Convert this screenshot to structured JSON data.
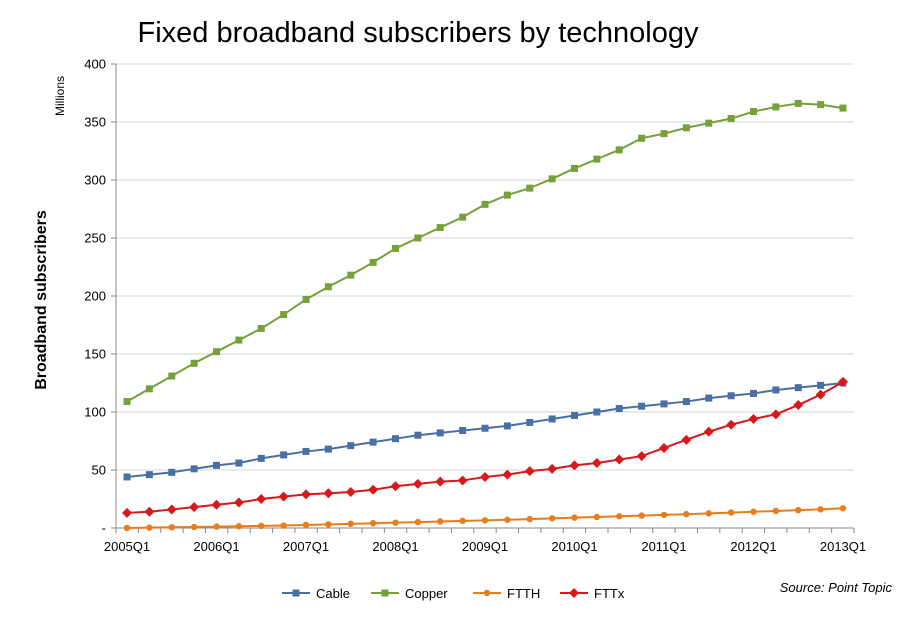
{
  "chart_data": {
    "type": "line",
    "title": "Fixed broadband subscribers by technology",
    "ylabel": "Broadband subscribers",
    "units": "Millions",
    "ylim": [
      0,
      400
    ],
    "yticks": [
      0,
      50,
      100,
      150,
      200,
      250,
      300,
      350,
      400
    ],
    "ytick_labels": [
      "-",
      "50",
      "100",
      "150",
      "200",
      "250",
      "300",
      "350",
      "400"
    ],
    "xtick_labels": [
      "2005Q1",
      "2006Q1",
      "2007Q1",
      "2008Q1",
      "2009Q1",
      "2010Q1",
      "2011Q1",
      "2012Q1",
      "2013Q1"
    ],
    "xtick_positions": [
      0,
      4,
      8,
      12,
      16,
      20,
      24,
      28,
      32
    ],
    "x_count": 33,
    "grid": true,
    "legend_position": "bottom",
    "source": "Source: Point Topic",
    "series": [
      {
        "name": "Cable",
        "color": "#4A6FA5",
        "marker": "square",
        "values": [
          44,
          46,
          48,
          51,
          54,
          56,
          60,
          63,
          66,
          68,
          71,
          74,
          77,
          80,
          82,
          84,
          86,
          88,
          91,
          94,
          97,
          100,
          103,
          105,
          107,
          109,
          112,
          114,
          116,
          119,
          121,
          123,
          125
        ]
      },
      {
        "name": "Copper",
        "color": "#77A03A",
        "marker": "square",
        "values": [
          109,
          120,
          131,
          142,
          152,
          162,
          172,
          184,
          197,
          208,
          218,
          229,
          241,
          250,
          259,
          268,
          279,
          287,
          293,
          301,
          310,
          318,
          326,
          336,
          340,
          345,
          349,
          353,
          359,
          363,
          366,
          365,
          362
        ]
      },
      {
        "name": "FTTH",
        "color": "#E87D1E",
        "marker": "circle",
        "values": [
          0,
          0.3,
          0.6,
          0.9,
          1.2,
          1.5,
          1.8,
          2.1,
          2.6,
          3.1,
          3.6,
          4.1,
          4.6,
          5.1,
          5.6,
          6.1,
          6.6,
          7.1,
          7.7,
          8.3,
          8.9,
          9.5,
          10.1,
          10.7,
          11.3,
          11.9,
          12.6,
          13.3,
          14.0,
          14.7,
          15.4,
          16.1,
          17.0
        ]
      },
      {
        "name": "FTTx",
        "color": "#D7191C",
        "marker": "diamond",
        "values": [
          13,
          14,
          16,
          18,
          20,
          22,
          25,
          27,
          29,
          30,
          31,
          33,
          36,
          38,
          40,
          41,
          44,
          46,
          49,
          51,
          54,
          56,
          59,
          62,
          69,
          76,
          83,
          89,
          94,
          98,
          106,
          115,
          126
        ]
      }
    ]
  }
}
